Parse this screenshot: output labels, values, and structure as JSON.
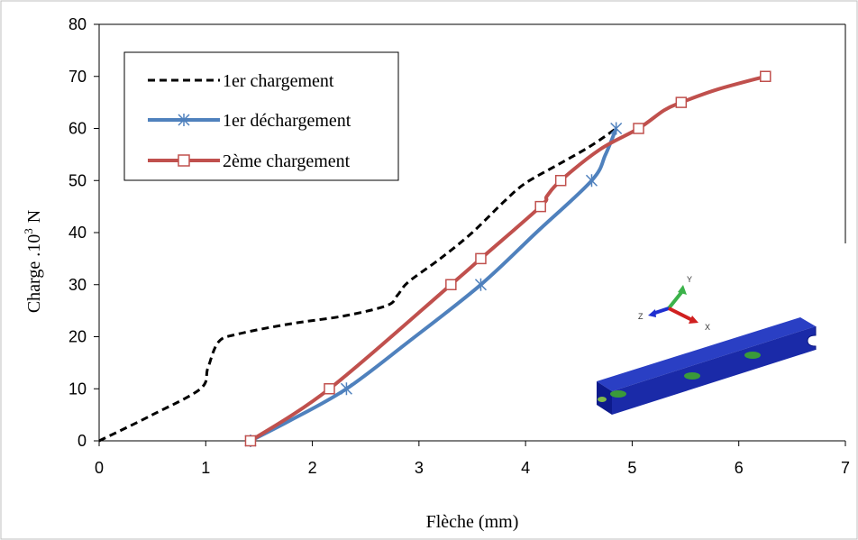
{
  "chart_data": {
    "type": "line",
    "title": "",
    "xlabel": "Flèche (mm)",
    "ylabel_main": "Charge .10",
    "ylabel_sup": "3",
    "ylabel_unit": "N",
    "xlim": [
      0,
      7
    ],
    "ylim": [
      0,
      80
    ],
    "x_ticks": [
      "0",
      "1",
      "2",
      "3",
      "4",
      "5",
      "6",
      "7"
    ],
    "y_ticks": [
      "0",
      "10",
      "20",
      "30",
      "40",
      "50",
      "60",
      "70",
      "80"
    ],
    "grid": false,
    "legend_position": "top-left",
    "series": [
      {
        "name": "1er chargement",
        "color": "#000000",
        "style": "dashed",
        "marker": "none",
        "x": [
          0,
          0.5,
          0.95,
          1.02,
          1.12,
          1.3,
          1.8,
          2.3,
          2.7,
          2.8,
          2.9,
          3.2,
          3.5,
          3.8,
          4.0,
          4.3,
          4.6,
          4.85
        ],
        "y": [
          0,
          5,
          10,
          14,
          19,
          20.5,
          22.5,
          24,
          26,
          28,
          30.5,
          35,
          40,
          46,
          49.5,
          53,
          56.5,
          60
        ]
      },
      {
        "name": "1er déchargement",
        "color": "#4F81BD",
        "style": "solid",
        "marker": "asterisk",
        "x": [
          1.42,
          1.8,
          2.32,
          2.9,
          3.58,
          4.1,
          4.62,
          4.75,
          4.85
        ],
        "y": [
          0,
          4,
          10,
          19,
          30,
          40,
          50,
          55,
          60
        ],
        "marker_x": [
          1.42,
          2.32,
          3.58,
          4.62,
          4.85
        ],
        "marker_y": [
          0,
          10,
          30,
          50,
          60
        ]
      },
      {
        "name": "2ème chargement",
        "color": "#C0504D",
        "style": "solid",
        "marker": "square",
        "x": [
          1.42,
          2.16,
          3.3,
          3.58,
          4.14,
          4.2,
          4.33,
          4.7,
          5.06,
          5.3,
          5.46,
          5.8,
          6.25
        ],
        "y": [
          0,
          10,
          30,
          35,
          45,
          47,
          50,
          56,
          60,
          63.5,
          65,
          67.5,
          70
        ],
        "marker_x": [
          1.42,
          2.16,
          3.3,
          3.58,
          4.14,
          4.33,
          5.06,
          5.46,
          6.25
        ],
        "marker_y": [
          0,
          10,
          30,
          35,
          45,
          50,
          60,
          65,
          70
        ]
      }
    ]
  },
  "inset": {
    "axes_labels": {
      "y": "Y",
      "z": "Z",
      "x": "X"
    },
    "colors": {
      "beam": "#1f2fa8",
      "beam_edge": "#0a1680",
      "spot": "#3a9a3a",
      "axis_y": "#3bb24a",
      "axis_z": "#1f2fd0",
      "axis_x": "#d02020"
    }
  }
}
